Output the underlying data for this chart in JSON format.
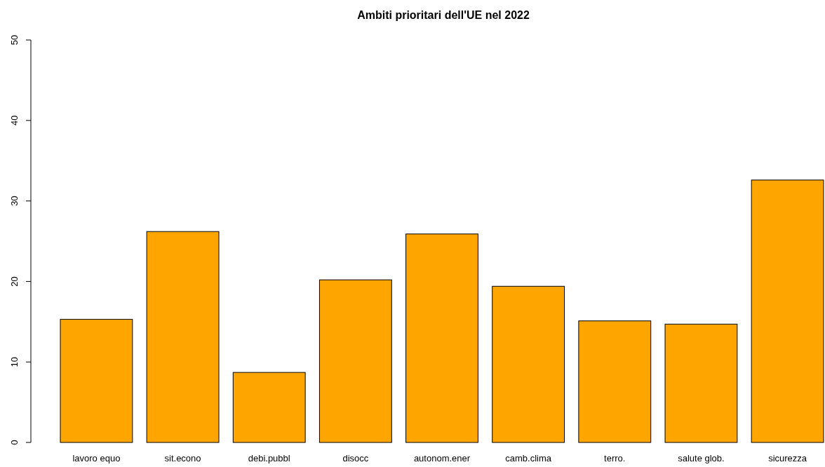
{
  "chart_data": {
    "type": "bar",
    "title": "Ambiti prioritari dell'UE nel 2022",
    "categories": [
      "lavoro equo",
      "sit.econo",
      "debi.pubbl",
      "disocc",
      "autonom.ener",
      "camb.clima",
      "terro.",
      "salute glob.",
      "sicurezza"
    ],
    "values": [
      15.3,
      26.2,
      8.7,
      20.2,
      25.9,
      19.4,
      15.1,
      14.7,
      32.6
    ],
    "color": "#ffa500",
    "ylim": [
      0,
      50
    ],
    "yticks": [
      0,
      10,
      20,
      30,
      40,
      50
    ],
    "grid": false
  }
}
